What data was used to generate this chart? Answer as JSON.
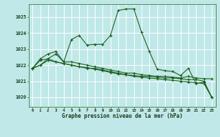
{
  "title": "Graphe pression niveau de la mer (hPa)",
  "background_color": "#c0e8e8",
  "grid_color": "#a8d8d8",
  "line_color": "#1a5c1a",
  "marker_color": "#1a5c1a",
  "xlim": [
    -0.5,
    23.5
  ],
  "ylim": [
    1019.4,
    1025.8
  ],
  "yticks": [
    1020,
    1021,
    1022,
    1023,
    1024,
    1025
  ],
  "xticks": [
    0,
    1,
    2,
    3,
    4,
    5,
    6,
    7,
    8,
    9,
    10,
    11,
    12,
    13,
    14,
    15,
    16,
    17,
    18,
    19,
    20,
    21,
    22,
    23
  ],
  "series": [
    [
      1021.8,
      1022.0,
      1022.4,
      1022.7,
      1022.2,
      1023.6,
      1023.85,
      1023.25,
      1023.3,
      1023.3,
      1023.85,
      1025.4,
      1025.5,
      1025.5,
      1024.05,
      1022.85,
      1021.75,
      1021.65,
      1021.6,
      1021.35,
      1021.8,
      1020.85,
      1020.95,
      1020.0
    ],
    [
      1021.8,
      1022.4,
      1022.7,
      1022.85,
      1022.2,
      1022.2,
      1022.1,
      1022.0,
      1021.9,
      1021.8,
      1021.7,
      1021.6,
      1021.5,
      1021.5,
      1021.4,
      1021.35,
      1021.3,
      1021.3,
      1021.25,
      1021.2,
      1021.3,
      1021.2,
      1021.15,
      1021.15
    ],
    [
      1021.8,
      1022.3,
      1022.4,
      1022.2,
      1022.1,
      1022.0,
      1021.9,
      1021.8,
      1021.8,
      1021.7,
      1021.6,
      1021.5,
      1021.4,
      1021.35,
      1021.3,
      1021.3,
      1021.25,
      1021.2,
      1021.2,
      1021.15,
      1021.1,
      1021.1,
      1021.0,
      1020.0
    ],
    [
      1021.8,
      1022.0,
      1022.3,
      1022.2,
      1022.1,
      1022.0,
      1021.9,
      1021.85,
      1021.75,
      1021.65,
      1021.55,
      1021.45,
      1021.4,
      1021.3,
      1021.25,
      1021.2,
      1021.15,
      1021.1,
      1021.05,
      1021.0,
      1020.95,
      1020.9,
      1020.85,
      1020.0
    ]
  ]
}
